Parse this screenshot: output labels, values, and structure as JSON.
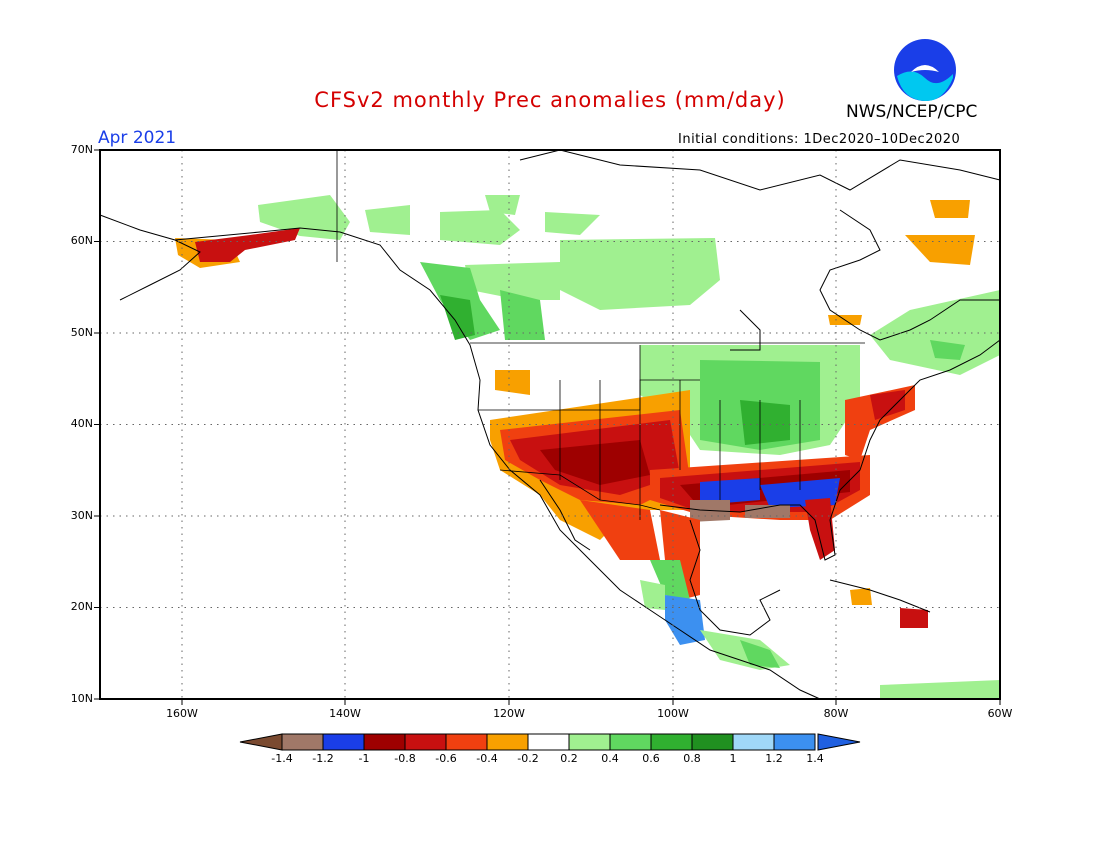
{
  "title": "CFSv2 monthly Prec anomalies (mm/day)",
  "agency": "NWS/NCEP/CPC",
  "logo_text": "NOAA",
  "month": "Apr 2021",
  "initial_conditions": "Initial conditions: 1Dec2020–10Dec2020",
  "lat_labels": [
    "70N",
    "60N",
    "50N",
    "40N",
    "30N",
    "20N",
    "10N"
  ],
  "lon_labels": [
    "160W",
    "140W",
    "120W",
    "100W",
    "80W",
    "60W"
  ],
  "colorbar": {
    "labels": [
      "-1.4",
      "-1.2",
      "-1",
      "-0.8",
      "-0.6",
      "-0.4",
      "-0.2",
      "0.2",
      "0.4",
      "0.6",
      "0.8",
      "1",
      "1.2",
      "1.4"
    ],
    "colors": [
      "#7a4a30",
      "#a07868",
      "#1a3ee8",
      "#9e0000",
      "#c81010",
      "#f04010",
      "#f8a000",
      "#ffffff",
      "#a0f090",
      "#60d860",
      "#30b030",
      "#209020",
      "#a0d8f8",
      "#3c90f0",
      "#2060e0"
    ]
  },
  "map": {
    "lon_range": [
      -170,
      -60
    ],
    "lat_range": [
      10,
      70
    ],
    "projection": "equirectangular"
  }
}
